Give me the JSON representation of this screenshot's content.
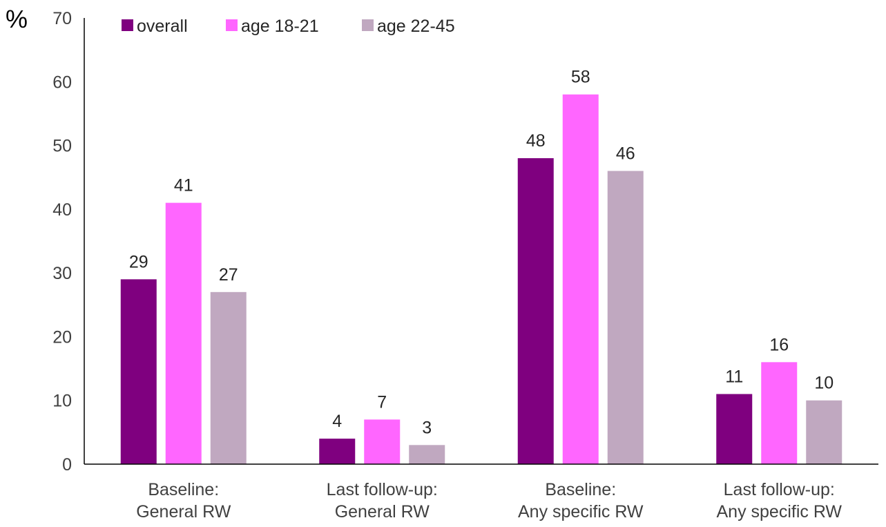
{
  "chart_data": {
    "type": "bar",
    "y_unit": "%",
    "categories": [
      [
        "Baseline:",
        "General RW"
      ],
      [
        "Last follow-up:",
        "General RW"
      ],
      [
        "Baseline:",
        "Any specific RW"
      ],
      [
        "Last follow-up:",
        "Any specific RW"
      ]
    ],
    "series": [
      {
        "name": "overall",
        "color": "#7f007f",
        "values": [
          29,
          4,
          48,
          11
        ]
      },
      {
        "name": "age 18-21",
        "color": "#ff66ff",
        "values": [
          41,
          7,
          58,
          16
        ]
      },
      {
        "name": "age 22-45",
        "color": "#c0a8c0",
        "values": [
          27,
          3,
          46,
          10
        ]
      }
    ],
    "yticks": [
      0,
      10,
      20,
      30,
      40,
      50,
      60,
      70
    ],
    "ylim": [
      0,
      70
    ],
    "legend_position": "top-left",
    "data_labels": true,
    "grid": false
  }
}
